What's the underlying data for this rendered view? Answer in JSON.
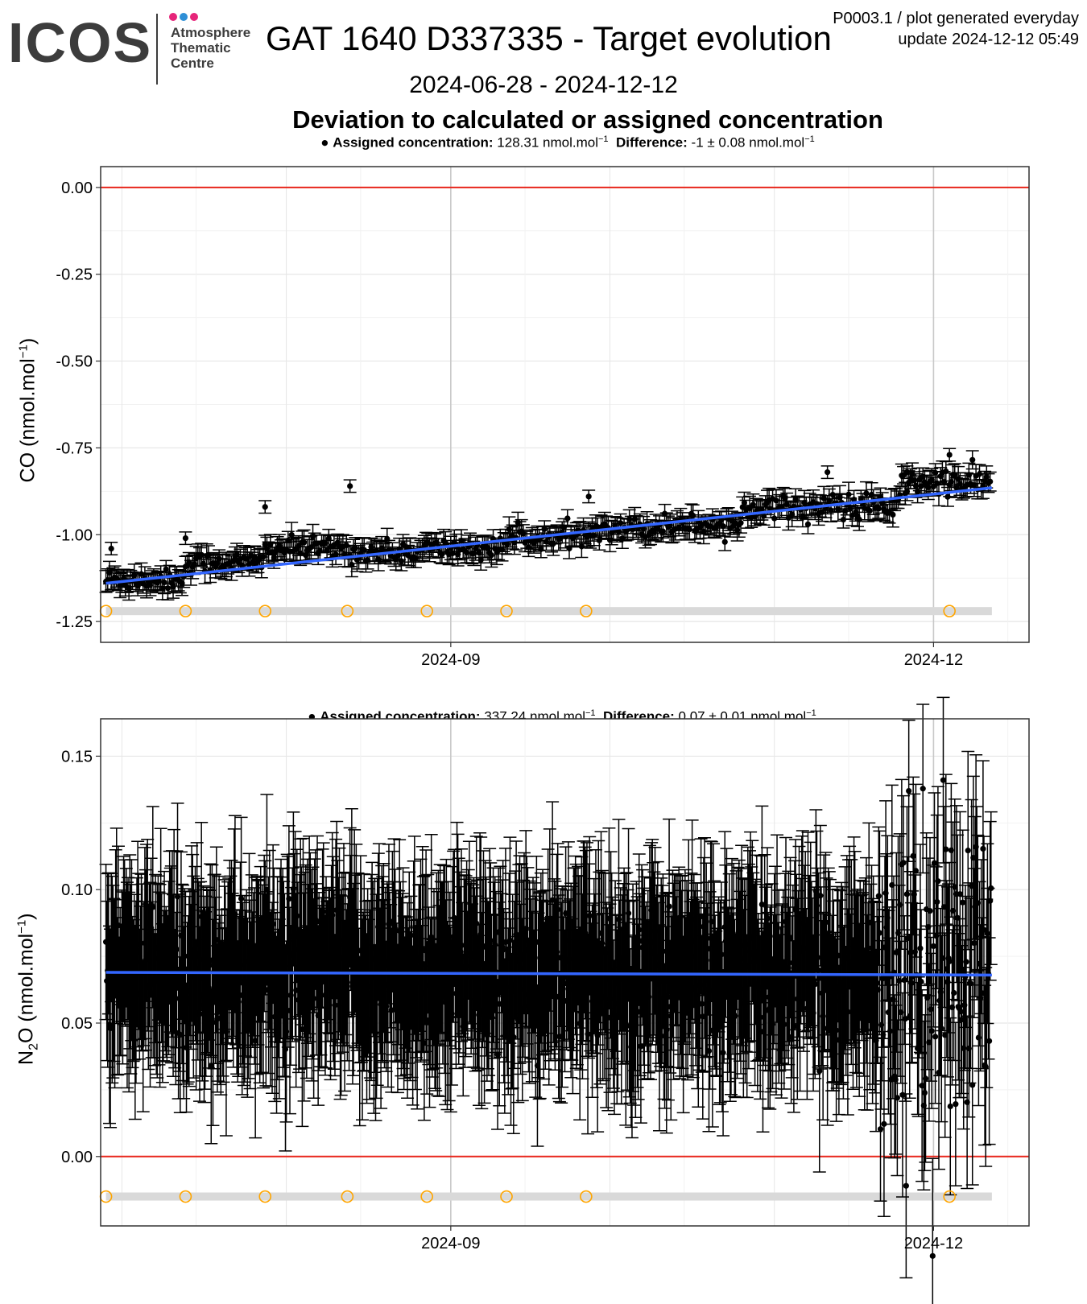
{
  "header": {
    "logo_text": "ICOS",
    "logo_sub_lines": [
      "Atmosphere",
      "Thematic",
      "Centre"
    ],
    "logo_dot_colors": [
      "#e6257a",
      "#2e8fd6",
      "#e6257a"
    ],
    "title": "GAT 1640 D337335 - Target evolution",
    "meta_line1": "P0003.1 / plot generated everyday",
    "meta_line2": "update  2024-12-12 05:49",
    "date_range": "2024-06-28 - 2024-12-12",
    "subtitle": "Deviation to calculated or assigned concentration"
  },
  "chart_data": [
    {
      "type": "scatter",
      "panel": "CO",
      "info_assigned_label": "Assigned concentration:",
      "info_assigned_value": "128.31 nmol.mol",
      "info_diff_label": "Difference:",
      "info_diff_value": "-1 ± 0.08 nmol.mol",
      "info_unit_sup": "−1",
      "ylabel_main": "CO (nmol.mol",
      "ylabel_sup": "−1",
      "ylabel_end": ")",
      "ylim": [
        -1.31,
        0.06
      ],
      "yticks": [
        "0.00",
        "-0.25",
        "-0.50",
        "-0.75",
        "-1.00",
        "-1.25"
      ],
      "ytick_values": [
        0,
        -0.25,
        -0.5,
        -0.75,
        -1.0,
        -1.25
      ],
      "xlim": [
        "2024-06-27",
        "2024-12-19"
      ],
      "xticks": [
        "2024-09",
        "2024-12"
      ],
      "xtick_dates": [
        "2024-09-01",
        "2024-12-01"
      ],
      "reference_line": 0,
      "trend": {
        "start_date": "2024-06-28",
        "start": -1.14,
        "end_date": "2024-12-12",
        "end": -0.865
      },
      "typical_error": 0.03,
      "segments": [
        {
          "start": "2024-06-28",
          "end": "2024-07-13",
          "mean": -1.13,
          "spread": 0.015
        },
        {
          "start": "2024-07-13",
          "end": "2024-07-28",
          "mean": -1.08,
          "spread": 0.015
        },
        {
          "start": "2024-07-28",
          "end": "2024-08-12",
          "mean": -1.04,
          "spread": 0.015
        },
        {
          "start": "2024-08-12",
          "end": "2024-08-27",
          "mean": -1.05,
          "spread": 0.015
        },
        {
          "start": "2024-08-27",
          "end": "2024-09-11",
          "mean": -1.04,
          "spread": 0.015
        },
        {
          "start": "2024-09-11",
          "end": "2024-09-26",
          "mean": -1.01,
          "spread": 0.015
        },
        {
          "start": "2024-09-26",
          "end": "2024-10-11",
          "mean": -0.98,
          "spread": 0.015
        },
        {
          "start": "2024-10-11",
          "end": "2024-10-26",
          "mean": -0.97,
          "spread": 0.015
        },
        {
          "start": "2024-10-26",
          "end": "2024-11-10",
          "mean": -0.92,
          "spread": 0.015
        },
        {
          "start": "2024-11-10",
          "end": "2024-11-25",
          "mean": -0.92,
          "spread": 0.02
        },
        {
          "start": "2024-11-25",
          "end": "2024-12-12",
          "mean": -0.85,
          "spread": 0.02
        }
      ],
      "outliers": [
        {
          "date": "2024-06-29",
          "y": -1.04
        },
        {
          "date": "2024-07-13",
          "y": -1.01
        },
        {
          "date": "2024-07-28",
          "y": -0.92
        },
        {
          "date": "2024-08-13",
          "y": -0.86
        },
        {
          "date": "2024-09-27",
          "y": -0.89
        },
        {
          "date": "2024-11-11",
          "y": -0.82
        },
        {
          "date": "2024-11-26",
          "y": -0.82
        },
        {
          "date": "2024-12-04",
          "y": -0.77
        }
      ],
      "markers_y": -1.22,
      "marker_dates": [
        "2024-06-28",
        "2024-07-13",
        "2024-07-28",
        "2024-08-12",
        "2024-08-27",
        "2024-09-11",
        "2024-09-26",
        "2024-09-30"
      ],
      "band_start": "2024-06-28",
      "band_end": "2024-12-12"
    },
    {
      "type": "scatter",
      "panel": "N2O",
      "info_assigned_label": "Assigned concentration:",
      "info_assigned_value": "337.24 nmol.mol",
      "info_diff_label": "Difference:",
      "info_diff_value": "0.07 ± 0.01 nmol.mol",
      "info_unit_sup": "−1",
      "ylabel_main": "N",
      "ylabel_sub": "2",
      "ylabel_rest": "O (nmol.mol",
      "ylabel_sup": "−1",
      "ylabel_end": ")",
      "ylim": [
        -0.026,
        0.164
      ],
      "yticks": [
        "0.15",
        "0.10",
        "0.05",
        "0.00"
      ],
      "ytick_values": [
        0.15,
        0.1,
        0.05,
        0.0
      ],
      "xlim": [
        "2024-06-27",
        "2024-12-19"
      ],
      "xticks": [
        "2024-09",
        "2024-12"
      ],
      "xtick_dates": [
        "2024-09-01",
        "2024-12-01"
      ],
      "reference_line": 0,
      "trend": {
        "start_date": "2024-06-28",
        "start": 0.069,
        "end_date": "2024-12-12",
        "end": 0.068
      },
      "typical_error": 0.03,
      "mean": 0.068,
      "spread": 0.012,
      "noisy_period": {
        "start": "2024-11-20",
        "end": "2024-12-12",
        "spread": 0.028
      },
      "markers_y": -0.015,
      "band_start": "2024-06-28",
      "band_end": "2024-12-12"
    }
  ],
  "colors": {
    "points": "#000000",
    "trend": "#3366ff",
    "reference": "#e8261b",
    "marker": "#ffa500",
    "band": "#d9d9d9",
    "grid_major": "#e6e6e6",
    "grid_minor": "#f2f2f2",
    "month_line": "#c8c8c8"
  }
}
